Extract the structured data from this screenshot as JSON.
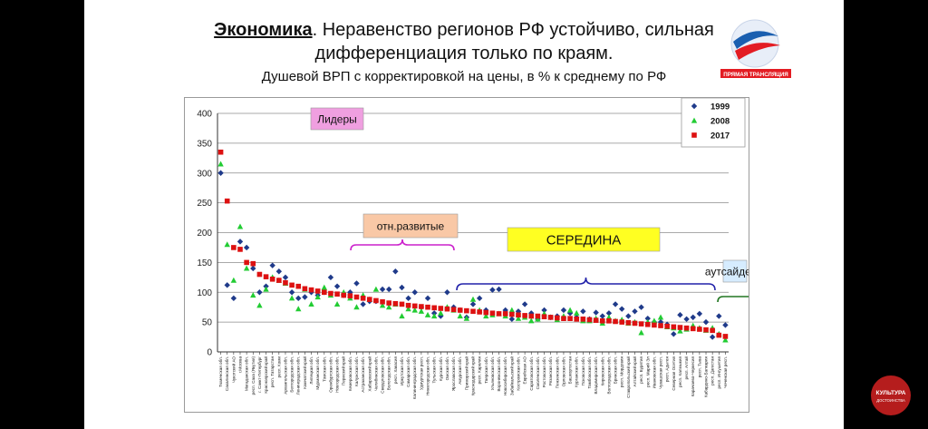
{
  "title": {
    "bold": "Экономика",
    "rest": ". Неравенство регионов РФ устойчиво, сильная",
    "line2": "дифференциация только по краям.",
    "subtitle": "Душевой ВРП с корректировкой на цены, в % к среднему по РФ"
  },
  "logo": {
    "caption": "ПРЯМАЯ ТРАНСЛЯЦИЯ"
  },
  "badge": {
    "line1": "КУЛЬТУРА",
    "line2": "ДОСТОИНСТВА"
  },
  "colors": {
    "s1999": "#1f3a8a",
    "s2008": "#22cc33",
    "s2017": "#dd1111",
    "pink": "#ef9fe0",
    "peach": "#f9c8a6",
    "yellow": "#ffff22",
    "lightblue": "#d6ecff",
    "grid": "#8c8c8c"
  },
  "chart_data": {
    "type": "scatter",
    "ylim": [
      0,
      400
    ],
    "yticks": [
      0,
      50,
      100,
      150,
      200,
      250,
      300,
      350,
      400
    ],
    "grid": true,
    "legend_position": "top-right",
    "legend": [
      "1999",
      "2008",
      "2017"
    ],
    "annotations": [
      {
        "text": "Лидеры",
        "style": "pink"
      },
      {
        "text": "отн.развитые",
        "style": "peach"
      },
      {
        "text": "СЕРЕДИНА",
        "style": "yellow"
      },
      {
        "text": "аутсайдеры",
        "style": "lightblue"
      }
    ],
    "categories": [
      "Тюменская обл.",
      "Сахалинская обл.",
      "Чукотский АО",
      "г.Москва",
      "Магаданская обл.",
      "респ. Саха (Якутия)",
      "г. Санкт-Петербург",
      "Красноярский край",
      "респ. Татарстан",
      "респ. Коми",
      "Архангельская обл.",
      "Белгородская обл.",
      "Ленинградская обл.",
      "Камчатский край",
      "Липецкая обл.",
      "Мурманская обл.",
      "Томская обл.",
      "Оренбургская обл.",
      "Новгородская обл.",
      "Пермский край",
      "Кемеровская обл.",
      "Калужская обл.",
      "Астраханская обл.",
      "Хабаровский край",
      "Челябинская обл.",
      "Свердловская обл.",
      "Вологодская обл.",
      "респ. Хакасия",
      "Иркутская обл.",
      "Самарская обл.",
      "Калининградская обл.",
      "Удмуртская респ.",
      "Нижегородская обл.",
      "Тульская обл.",
      "Курская обл.",
      "Омская обл.",
      "Ярославская обл.",
      "Амурская обл.",
      "Приморский край",
      "Краснодарский край",
      "респ. Карелия",
      "Тверская обл.",
      "Ульяновская обл.",
      "Воронежская обл.",
      "Новосибирская обл.",
      "Забайкальский край",
      "Костромская обл.",
      "Еврейская АО",
      "Саратовская обл.",
      "Смоленская обл.",
      "Ростовская обл.",
      "Рязанская обл.",
      "Пензенская обл.",
      "Орловская обл.",
      "Башкортостан",
      "Курганская обл.",
      "Псковская обл.",
      "Тамбовская обл.",
      "Владимирская обл.",
      "Кировская обл.",
      "Волгоградская обл.",
      "Брянская обл.",
      "респ. Мордовия",
      "Ставропольский край",
      "Алтайский край",
      "респ. Бурятия",
      "респ. Марий Эл",
      "Ивановская обл.",
      "Чувашская респ.",
      "респ. Адыгея",
      "Северная Осетия",
      "респ. Калмыкия",
      "респ. Алтай",
      "Карачаево-Черкесия",
      "респ. Тыва",
      "Кабардино-Балкария",
      "респ. Дагестан",
      "респ. Ингушетия",
      "Чеченская респ."
    ],
    "series": [
      {
        "name": "1999",
        "marker": "diamond",
        "values": [
          300,
          112,
          90,
          185,
          175,
          140,
          100,
          110,
          145,
          135,
          125,
          100,
          90,
          92,
          100,
          95,
          100,
          125,
          110,
          95,
          100,
          115,
          80,
          85,
          85,
          105,
          105,
          135,
          108,
          90,
          100,
          75,
          90,
          65,
          60,
          100,
          75,
          70,
          58,
          80,
          90,
          70,
          104,
          105,
          70,
          55,
          68,
          80,
          65,
          55,
          70,
          58,
          60,
          70,
          65,
          58,
          68,
          55,
          66,
          60,
          65,
          80,
          72,
          60,
          68,
          75,
          56,
          50,
          50,
          46,
          30,
          62,
          55,
          58,
          64,
          50,
          25,
          60,
          45
        ]
      },
      {
        "name": "2008",
        "marker": "triangle",
        "values": [
          315,
          180,
          120,
          210,
          140,
          95,
          78,
          105,
          125,
          120,
          115,
          90,
          72,
          105,
          80,
          92,
          108,
          95,
          80,
          100,
          90,
          75,
          95,
          88,
          105,
          78,
          75,
          80,
          60,
          72,
          70,
          68,
          62,
          60,
          65,
          75,
          70,
          60,
          56,
          88,
          70,
          60,
          62,
          64,
          60,
          70,
          56,
          58,
          52,
          55,
          64,
          58,
          54,
          60,
          70,
          65,
          52,
          52,
          56,
          48,
          58,
          52,
          54,
          48,
          50,
          32,
          50,
          52,
          58,
          42,
          40,
          35,
          38,
          44,
          40,
          36,
          40,
          30,
          20
        ]
      },
      {
        "name": "2017",
        "marker": "square",
        "values": [
          335,
          253,
          175,
          172,
          150,
          148,
          130,
          126,
          122,
          120,
          116,
          112,
          110,
          106,
          104,
          102,
          100,
          98,
          97,
          95,
          94,
          92,
          90,
          88,
          86,
          84,
          82,
          81,
          80,
          78,
          77,
          76,
          75,
          74,
          73,
          72,
          71,
          70,
          69,
          68,
          67,
          66,
          65,
          64,
          64,
          63,
          62,
          61,
          60,
          60,
          59,
          58,
          57,
          56,
          56,
          55,
          55,
          54,
          53,
          52,
          52,
          51,
          50,
          49,
          48,
          47,
          46,
          45,
          44,
          43,
          42,
          41,
          40,
          39,
          38,
          37,
          36,
          28,
          26
        ]
      }
    ]
  }
}
